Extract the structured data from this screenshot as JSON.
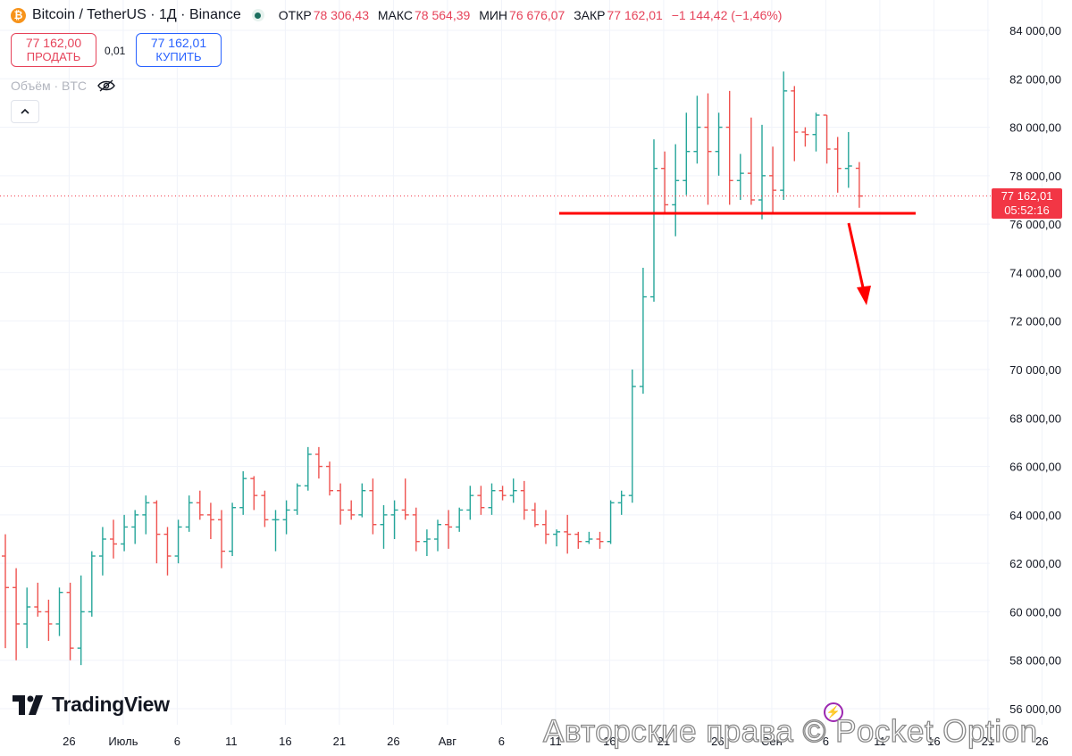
{
  "header": {
    "symbol": "Bitcoin / TetherUS · 1Д · Binance",
    "open_label": "ОТКР",
    "open_value": "78 306,43",
    "high_label": "МАКС",
    "high_value": "78 564,39",
    "low_label": "МИН",
    "low_value": "76 676,07",
    "close_label": "ЗАКР",
    "close_value": "77 162,01",
    "change": "−1 144,42 (−1,46%)",
    "icon": "bitcoin-icon"
  },
  "trade": {
    "sell_price": "77 162,00",
    "sell_label": "ПРОДАТЬ",
    "spread": "0,01",
    "buy_price": "77 162,01",
    "buy_label": "КУПИТЬ"
  },
  "volume_label": "Объём · BTC",
  "logo_text": "TradingView",
  "watermark": "Авторские права © Pocket Option",
  "last_price": {
    "value": "77 162,01",
    "countdown": "05:52:16"
  },
  "colors": {
    "up": "#26a69a",
    "down": "#ef5350",
    "annotation": "#ff0000",
    "price_line": "#f23645"
  },
  "chart_data": {
    "type": "ohlc",
    "title": "",
    "xlabel": "",
    "ylabel": "",
    "ylim": [
      55000,
      85000
    ],
    "y_ticks": [
      56000,
      58000,
      60000,
      62000,
      64000,
      66000,
      68000,
      70000,
      72000,
      74000,
      76000,
      78000,
      80000,
      82000,
      84000
    ],
    "y_tick_labels": [
      "56 000,00",
      "58 000,00",
      "60 000,00",
      "62 000,00",
      "64 000,00",
      "66 000,00",
      "68 000,00",
      "70 000,00",
      "72 000,00",
      "74 000,00",
      "76 000,00",
      "78 000,00",
      "80 000,00",
      "82 000,00",
      "84 000,00"
    ],
    "x_tick_labels": [
      "26",
      "Июль",
      "6",
      "11",
      "16",
      "21",
      "26",
      "Авг",
      "6",
      "11",
      "16",
      "21",
      "26",
      "Сен",
      "6",
      "11",
      "16",
      "21",
      "26"
    ],
    "x_tick_bar_index": [
      4,
      9,
      14,
      19,
      24,
      29,
      34,
      39,
      44,
      49,
      54,
      59,
      64,
      69,
      74,
      79,
      84,
      89,
      94
    ],
    "ohlc": [
      [
        62300,
        63200,
        58500,
        61000
      ],
      [
        61000,
        61800,
        58000,
        59500
      ],
      [
        59500,
        61000,
        58500,
        60200
      ],
      [
        60200,
        61200,
        59800,
        60000
      ],
      [
        60000,
        60500,
        58800,
        59500
      ],
      [
        59500,
        61000,
        59000,
        60800
      ],
      [
        60800,
        61200,
        58000,
        58500
      ],
      [
        58500,
        61500,
        57800,
        60000
      ],
      [
        60000,
        62500,
        59800,
        62300
      ],
      [
        62300,
        63500,
        61500,
        63000
      ],
      [
        63000,
        63800,
        62200,
        62800
      ],
      [
        62800,
        64000,
        62500,
        63500
      ],
      [
        63500,
        64200,
        62800,
        64000
      ],
      [
        64000,
        64800,
        63200,
        64500
      ],
      [
        64500,
        64600,
        62000,
        63200
      ],
      [
        63200,
        63500,
        61500,
        62300
      ],
      [
        62300,
        63800,
        62000,
        63500
      ],
      [
        63500,
        64800,
        63300,
        64500
      ],
      [
        64500,
        65000,
        63800,
        64000
      ],
      [
        64000,
        64500,
        63000,
        63800
      ],
      [
        63800,
        64200,
        61800,
        62500
      ],
      [
        62500,
        64500,
        62300,
        64300
      ],
      [
        64300,
        65800,
        64000,
        65500
      ],
      [
        65500,
        65600,
        64200,
        64800
      ],
      [
        64800,
        65000,
        63500,
        63800
      ],
      [
        63800,
        64200,
        62500,
        63800
      ],
      [
        63800,
        64600,
        63200,
        64200
      ],
      [
        64200,
        65300,
        64000,
        65200
      ],
      [
        65200,
        66800,
        65000,
        66500
      ],
      [
        66500,
        66800,
        65500,
        66000
      ],
      [
        66000,
        66200,
        64800,
        65000
      ],
      [
        65000,
        65300,
        63600,
        64200
      ],
      [
        64200,
        64600,
        63800,
        64000
      ],
      [
        64000,
        65300,
        63900,
        65000
      ],
      [
        65000,
        65500,
        63200,
        63600
      ],
      [
        63600,
        64400,
        62600,
        64000
      ],
      [
        64000,
        64600,
        63000,
        64200
      ],
      [
        64200,
        65500,
        63800,
        64000
      ],
      [
        64000,
        64300,
        62500,
        62900
      ],
      [
        62900,
        63400,
        62300,
        63000
      ],
      [
        63000,
        63800,
        62500,
        63600
      ],
      [
        63600,
        64200,
        62600,
        63500
      ],
      [
        63500,
        64300,
        63300,
        64200
      ],
      [
        64200,
        65200,
        63800,
        64800
      ],
      [
        64800,
        65200,
        64000,
        64300
      ],
      [
        64300,
        65300,
        64000,
        65000
      ],
      [
        65000,
        65200,
        64600,
        64800
      ],
      [
        64800,
        65500,
        64500,
        65000
      ],
      [
        65000,
        65400,
        63800,
        64200
      ],
      [
        64200,
        64500,
        63500,
        63600
      ],
      [
        63600,
        64200,
        62800,
        63200
      ],
      [
        63200,
        63400,
        62700,
        63300
      ],
      [
        63300,
        64000,
        62400,
        63200
      ],
      [
        63200,
        63300,
        62600,
        62900
      ],
      [
        62900,
        63300,
        62800,
        63000
      ],
      [
        63000,
        63300,
        62600,
        62900
      ],
      [
        62900,
        64600,
        62800,
        64500
      ],
      [
        64500,
        65000,
        64000,
        64800
      ],
      [
        64800,
        70000,
        64500,
        69300
      ],
      [
        69300,
        74200,
        69000,
        73000
      ],
      [
        73000,
        79500,
        72800,
        78300
      ],
      [
        78300,
        79000,
        76400,
        76800
      ],
      [
        76800,
        79300,
        75500,
        77800
      ],
      [
        77800,
        80600,
        77200,
        79000
      ],
      [
        79000,
        81300,
        78500,
        80000
      ],
      [
        80000,
        81400,
        76800,
        79000
      ],
      [
        79000,
        80600,
        78000,
        80000
      ],
      [
        80000,
        81500,
        76800,
        77800
      ],
      [
        77800,
        78900,
        77000,
        78100
      ],
      [
        78100,
        80400,
        76800,
        77000
      ],
      [
        77000,
        80100,
        76200,
        78000
      ],
      [
        78000,
        79200,
        76500,
        77400
      ],
      [
        77400,
        82300,
        77000,
        81500
      ],
      [
        81500,
        81700,
        78600,
        79800
      ],
      [
        79800,
        80000,
        79200,
        79700
      ],
      [
        79700,
        80600,
        79000,
        80500
      ],
      [
        80500,
        80500,
        78500,
        79100
      ],
      [
        79100,
        79600,
        77300,
        78300
      ],
      [
        78300,
        79800,
        77500,
        78400
      ],
      [
        78306.43,
        78564.39,
        76676.07,
        77162.01
      ]
    ]
  }
}
